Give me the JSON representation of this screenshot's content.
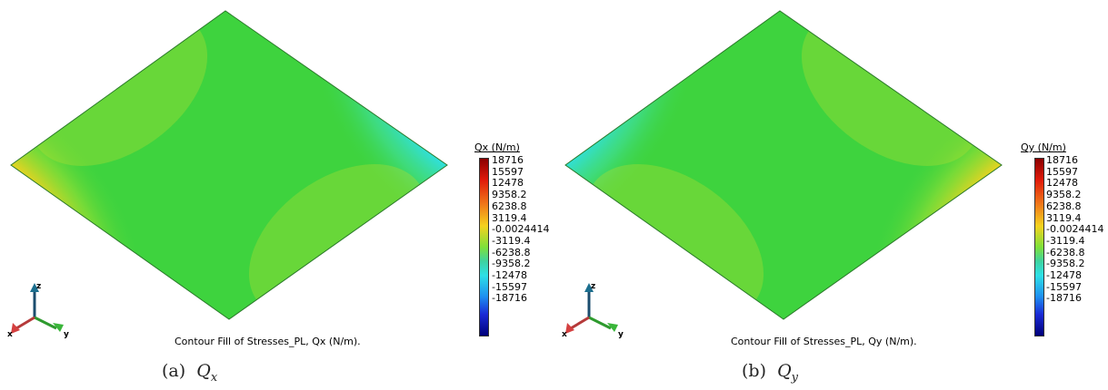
{
  "panels": [
    {
      "legend_title": "Qx (N/m)",
      "legend_values": [
        "18716",
        "15597",
        "12478",
        "9358.2",
        "6238.8",
        "3119.4",
        "-0.0024414",
        "-3119.4",
        "-6238.8",
        "-9358.2",
        "-12478",
        "-15597",
        "-18716"
      ],
      "caption": "Contour Fill of Stresses_PL, Qx (N/m).",
      "subcaption_label": "(a)",
      "subcaption_symbol": "Q",
      "subcaption_sub": "x",
      "hot_corner": "left",
      "axes": {
        "x": "x",
        "y": "y",
        "z": "z"
      }
    },
    {
      "legend_title": "Qy (N/m)",
      "legend_values": [
        "18716",
        "15597",
        "12478",
        "9358.2",
        "6238.8",
        "3119.4",
        "-0.0024414",
        "-3119.4",
        "-6238.8",
        "-9358.2",
        "-12478",
        "-15597",
        "-18716"
      ],
      "caption": "Contour Fill of Stresses_PL, Qy (N/m).",
      "subcaption_label": "(b)",
      "subcaption_symbol": "Q",
      "subcaption_sub": "y",
      "hot_corner": "right",
      "axes": {
        "x": "x",
        "y": "y",
        "z": "z"
      }
    }
  ],
  "colors": {
    "max": "#8b0000",
    "min": "#00007a",
    "mid": "#3ed33e",
    "edge": "#2a7a2a"
  }
}
